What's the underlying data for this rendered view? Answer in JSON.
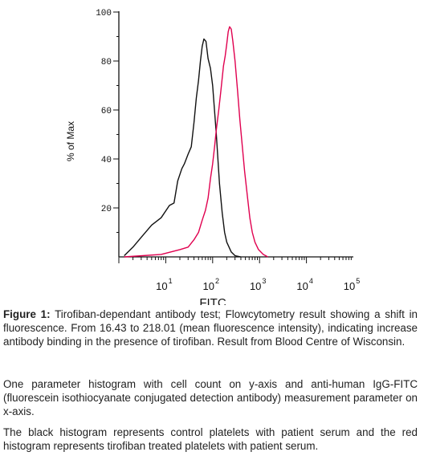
{
  "chart_data": {
    "type": "line",
    "xlabel": "FITC",
    "ylabel": "% of Max",
    "xscale": "log",
    "xlim": [
      1,
      100000
    ],
    "ylim": [
      0,
      100
    ],
    "x_ticks": [
      {
        "base": "10",
        "exp": "1"
      },
      {
        "base": "10",
        "exp": "2"
      },
      {
        "base": "10",
        "exp": "3"
      },
      {
        "base": "10",
        "exp": "4"
      },
      {
        "base": "10",
        "exp": "5"
      }
    ],
    "y_ticks": [
      "100",
      "80",
      "60",
      "40",
      "20"
    ],
    "series": [
      {
        "color": "#111111",
        "points": [
          [
            1.3,
            0.5
          ],
          [
            2.0,
            4
          ],
          [
            3.0,
            8
          ],
          [
            5.0,
            13
          ],
          [
            8.0,
            16
          ],
          [
            12,
            21
          ],
          [
            15,
            22
          ],
          [
            18,
            31
          ],
          [
            22,
            36
          ],
          [
            25,
            38
          ],
          [
            30,
            42
          ],
          [
            35,
            45
          ],
          [
            40,
            55
          ],
          [
            45,
            65
          ],
          [
            50,
            72
          ],
          [
            55,
            80
          ],
          [
            60,
            86
          ],
          [
            65,
            89
          ],
          [
            72,
            88
          ],
          [
            80,
            81
          ],
          [
            90,
            77
          ],
          [
            100,
            70
          ],
          [
            120,
            50
          ],
          [
            140,
            30
          ],
          [
            160,
            18
          ],
          [
            180,
            10
          ],
          [
            200,
            6
          ],
          [
            250,
            2
          ],
          [
            300,
            0.5
          ],
          [
            400,
            0
          ]
        ]
      },
      {
        "color": "#e0004f",
        "points": [
          [
            1.3,
            0
          ],
          [
            8,
            1
          ],
          [
            20,
            3
          ],
          [
            30,
            4
          ],
          [
            40,
            7
          ],
          [
            50,
            10
          ],
          [
            60,
            15
          ],
          [
            70,
            19
          ],
          [
            80,
            24
          ],
          [
            90,
            32
          ],
          [
            100,
            38
          ],
          [
            110,
            45
          ],
          [
            120,
            52
          ],
          [
            135,
            60
          ],
          [
            150,
            68
          ],
          [
            170,
            78
          ],
          [
            185,
            82
          ],
          [
            200,
            87
          ],
          [
            215,
            92
          ],
          [
            230,
            94
          ],
          [
            250,
            93
          ],
          [
            270,
            88
          ],
          [
            300,
            80
          ],
          [
            340,
            68
          ],
          [
            380,
            56
          ],
          [
            430,
            45
          ],
          [
            480,
            35
          ],
          [
            550,
            25
          ],
          [
            620,
            16
          ],
          [
            700,
            10
          ],
          [
            800,
            6
          ],
          [
            950,
            3
          ],
          [
            1200,
            1
          ],
          [
            1500,
            0
          ]
        ]
      }
    ]
  },
  "captions": {
    "fig_label": "Figure 1:",
    "fig_text": " Tirofiban-dependant antibody test; Flowcytometry result showing a shift in fluorescence. From 16.43 to 218.01 (mean fluorescence intensity), indicating increase antibody binding in the presence of tirofiban. Result from Blood Centre of Wisconsin.",
    "p2": "One parameter histogram with cell count on y-axis and anti-human IgG-FITC (fluorescein isothiocyanate conjugated detection antibody) measurement parameter on x-axis.",
    "p3": "The black histogram represents control platelets with patient serum and the red histogram represents tirofiban treated platelets with patient serum."
  }
}
